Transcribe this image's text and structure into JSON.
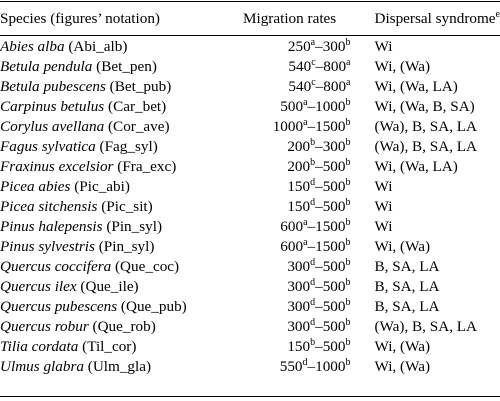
{
  "headers": {
    "species": "Species (figures’ notation)",
    "migration": "Migration rates",
    "dispersal": "Dispersal syndrome",
    "dispersal_sup": "e"
  },
  "rows": [
    {
      "sci": "Abies alba",
      "code": "(Abi_alb)",
      "low": "250",
      "low_sup": "a",
      "high": "300",
      "high_sup": "b",
      "dispersal": "Wi"
    },
    {
      "sci": "Betula pendula",
      "code": "(Bet_pen)",
      "low": "540",
      "low_sup": "c",
      "high": "800",
      "high_sup": "a",
      "dispersal": "Wi, (Wa)"
    },
    {
      "sci": "Betula pubescens",
      "code": "(Bet_pub)",
      "low": "540",
      "low_sup": "c",
      "high": "800",
      "high_sup": "a",
      "dispersal": "Wi, (Wa, LA)"
    },
    {
      "sci": "Carpinus betulus",
      "code": "(Car_bet)",
      "low": "500",
      "low_sup": "a",
      "high": "1000",
      "high_sup": "b",
      "dispersal": "Wi, (Wa, B, SA)"
    },
    {
      "sci": "Corylus avellana",
      "code": "(Cor_ave)",
      "low": "1000",
      "low_sup": "a",
      "high": "1500",
      "high_sup": "b",
      "dispersal": "(Wa), B, SA, LA"
    },
    {
      "sci": "Fagus sylvatica",
      "code": "(Fag_syl)",
      "low": "200",
      "low_sup": "b",
      "high": "300",
      "high_sup": "b",
      "dispersal": "(Wa), B, SA, LA"
    },
    {
      "sci": "Fraxinus excelsior",
      "code": "(Fra_exc)",
      "low": "200",
      "low_sup": "b",
      "high": "500",
      "high_sup": "b",
      "dispersal": "Wi, (Wa, LA)"
    },
    {
      "sci": "Picea abies",
      "code": "(Pic_abi)",
      "low": "150",
      "low_sup": "d",
      "high": "500",
      "high_sup": "b",
      "dispersal": "Wi"
    },
    {
      "sci": "Picea sitchensis",
      "code": "(Pic_sit)",
      "low": "150",
      "low_sup": "d",
      "high": "500",
      "high_sup": "b",
      "dispersal": "Wi"
    },
    {
      "sci": "Pinus halepensis",
      "code": "(Pin_syl)",
      "low": "600",
      "low_sup": "a",
      "high": "1500",
      "high_sup": "b",
      "dispersal": "Wi"
    },
    {
      "sci": "Pinus sylvestris",
      "code": "(Pin_syl)",
      "low": "600",
      "low_sup": "a",
      "high": "1500",
      "high_sup": "b",
      "dispersal": "Wi, (Wa)"
    },
    {
      "sci": "Quercus coccifera",
      "code": "(Que_coc)",
      "low": "300",
      "low_sup": "d",
      "high": "500",
      "high_sup": "b",
      "dispersal": "B, SA, LA"
    },
    {
      "sci": "Quercus ilex",
      "code": "(Que_ile)",
      "low": "300",
      "low_sup": "d",
      "high": "500",
      "high_sup": "b",
      "dispersal": "B, SA, LA"
    },
    {
      "sci": "Quercus pubescens",
      "code": "(Que_pub)",
      "low": "300",
      "low_sup": "d",
      "high": "500",
      "high_sup": "b",
      "dispersal": "B, SA, LA"
    },
    {
      "sci": "Quercus robur",
      "code": "(Que_rob)",
      "low": "300",
      "low_sup": "d",
      "high": "500",
      "high_sup": "b",
      "dispersal": "(Wa), B, SA, LA"
    },
    {
      "sci": "Tilia cordata",
      "code": "(Til_cor)",
      "low": "150",
      "low_sup": "b",
      "high": "500",
      "high_sup": "b",
      "dispersal": "Wi, (Wa)"
    },
    {
      "sci": "Ulmus glabra",
      "code": "(Ulm_gla)",
      "low": "550",
      "low_sup": "d",
      "high": "1000",
      "high_sup": "b",
      "dispersal": "Wi, (Wa)"
    }
  ],
  "range_separator": "–"
}
